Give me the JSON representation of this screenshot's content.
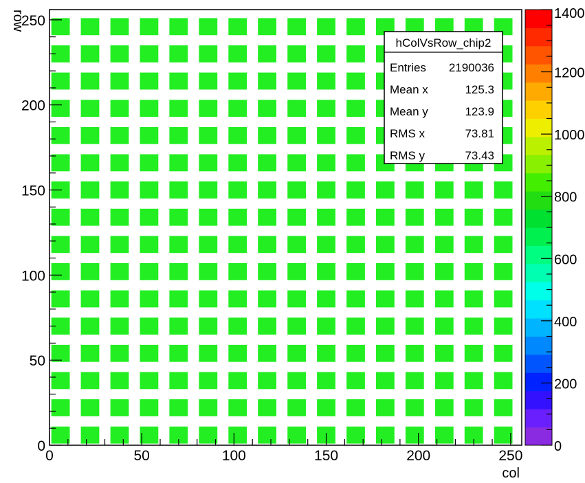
{
  "chart_data": {
    "type": "heatmap",
    "title": "",
    "xlabel": "col",
    "ylabel": "row",
    "xlim": [
      0,
      256
    ],
    "ylim": [
      0,
      256
    ],
    "x_ticks": [
      "0",
      "50",
      "100",
      "150",
      "200",
      "250"
    ],
    "y_ticks": [
      "0",
      "50",
      "100",
      "150",
      "200",
      "250"
    ],
    "cells": {
      "x_pitch": 16,
      "y_pitch": 16,
      "cell_width": 10,
      "cell_height": 10,
      "count_x": 16,
      "count_y": 16,
      "typical_value": 850,
      "color": "#22ee22"
    },
    "colorbar": {
      "range": [
        0,
        1400
      ],
      "labels": [
        "0",
        "200",
        "400",
        "600",
        "800",
        "1000",
        "1200",
        "1400"
      ],
      "colors": [
        "#8a2be2",
        "#6a1fff",
        "#3311ff",
        "#0022ff",
        "#0055ff",
        "#0088ff",
        "#00b4ff",
        "#00e0ff",
        "#00ffe8",
        "#00ffb0",
        "#00ff80",
        "#00f050",
        "#00e030",
        "#22dd11",
        "#44ee00",
        "#88f000",
        "#bbf000",
        "#eeee00",
        "#ffd000",
        "#ffaa00",
        "#ff8000",
        "#ff5500",
        "#ff2a00",
        "#ff0000"
      ]
    },
    "stats": {
      "name": "hColVsRow_chip2",
      "rows": [
        {
          "label": "Entries",
          "value": "2190036"
        },
        {
          "label": "Mean x",
          "value": "125.3"
        },
        {
          "label": "Mean y",
          "value": "123.9"
        },
        {
          "label": "RMS x",
          "value": "73.81"
        },
        {
          "label": "RMS y",
          "value": "73.43"
        }
      ]
    }
  }
}
